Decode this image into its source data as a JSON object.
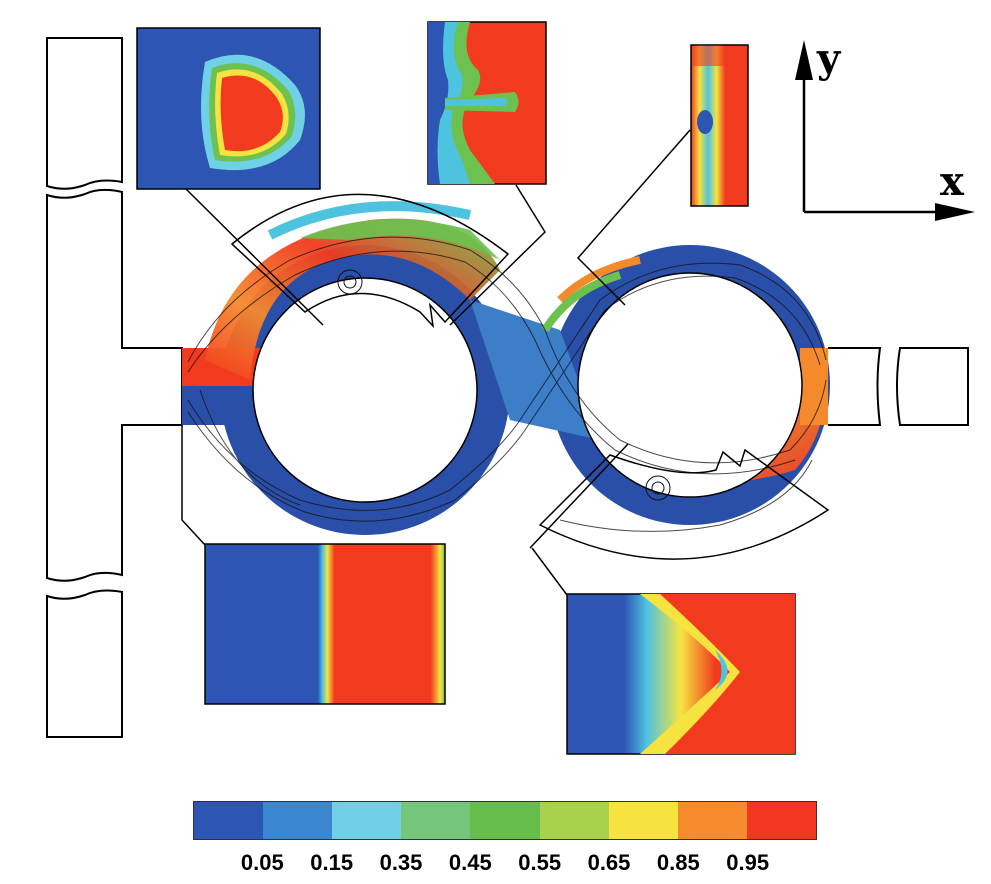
{
  "axes": {
    "x_label": "x",
    "y_label": "y"
  },
  "colors": {
    "low": "#2a4fa8",
    "cyan": "#4ec3e0",
    "green": "#6cc14f",
    "yellow": "#f4e53a",
    "orange": "#f58a2c",
    "high": "#f23a1f"
  },
  "legend": {
    "colors": [
      "#2d55b3",
      "#3a86d0",
      "#6fd0e6",
      "#74c77a",
      "#66bd4c",
      "#a9d14a",
      "#f6e33f",
      "#f58b2d",
      "#f2361f"
    ],
    "ticks": [
      "0.05",
      "0.15",
      "0.35",
      "0.45",
      "0.55",
      "0.65",
      "0.85",
      "0.95"
    ]
  }
}
